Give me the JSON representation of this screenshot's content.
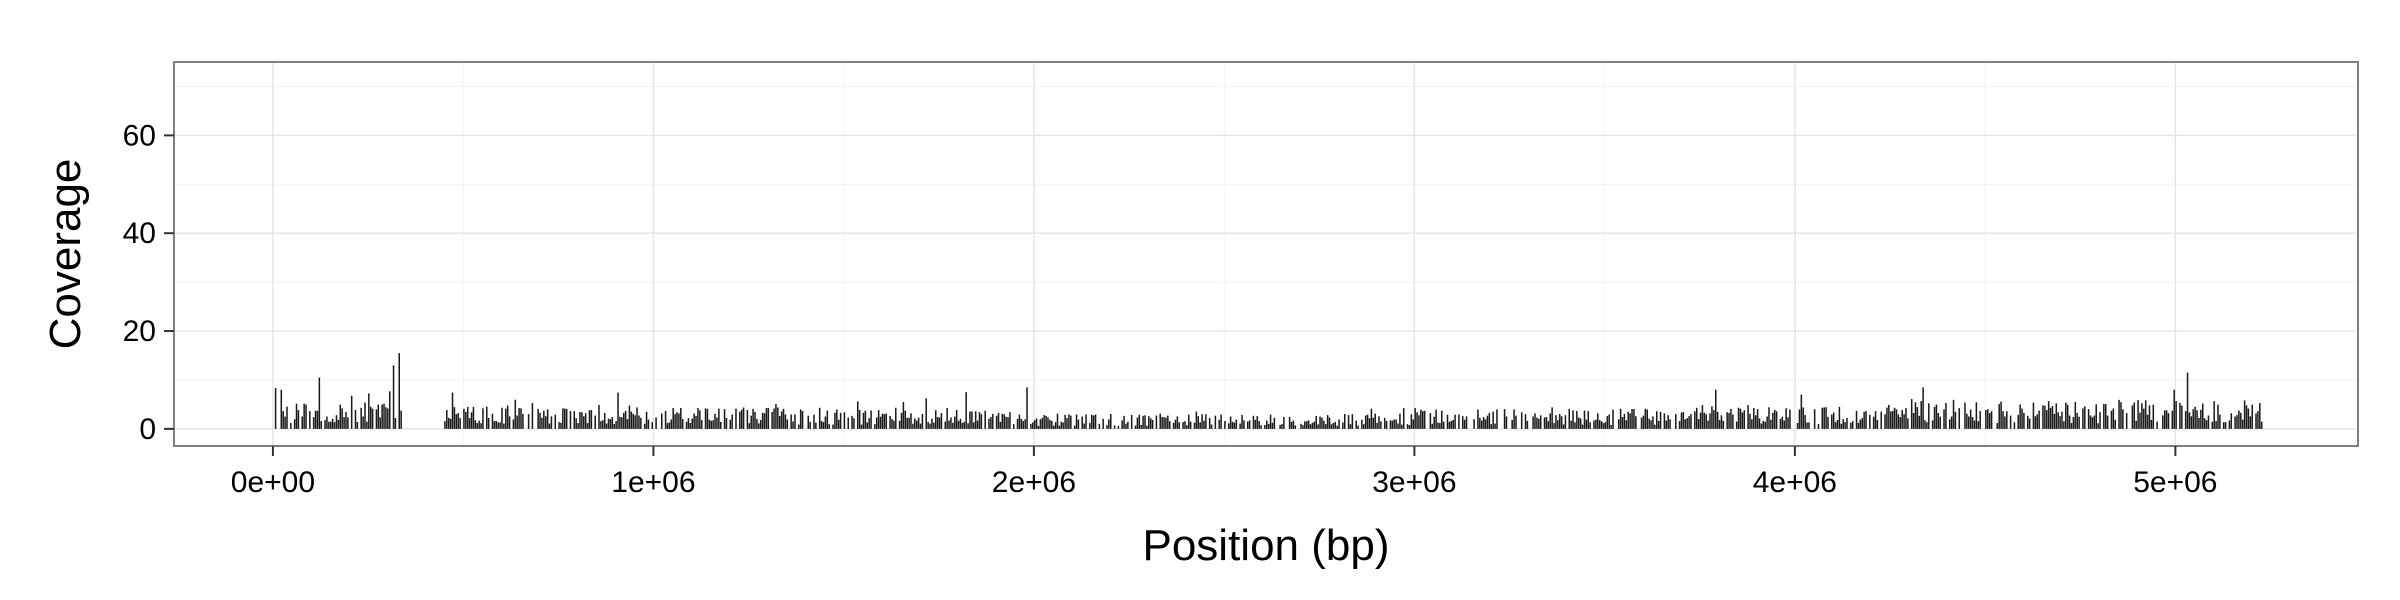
{
  "chart_data": {
    "type": "bar",
    "xlabel": "Position (bp)",
    "ylabel": "Coverage",
    "xlim": [
      -260000,
      5480000
    ],
    "ylim": [
      -3.5,
      75
    ],
    "x_ticks": [
      {
        "value": 0,
        "label": "0e+00"
      },
      {
        "value": 1000000,
        "label": "1e+06"
      },
      {
        "value": 2000000,
        "label": "2e+06"
      },
      {
        "value": 3000000,
        "label": "3e+06"
      },
      {
        "value": 4000000,
        "label": "4e+06"
      },
      {
        "value": 5000000,
        "label": "5e+06"
      }
    ],
    "y_ticks": [
      {
        "value": 0,
        "label": "0"
      },
      {
        "value": 20,
        "label": "20"
      },
      {
        "value": 40,
        "label": "40"
      },
      {
        "value": 60,
        "label": "60"
      }
    ],
    "bin_width": 5000,
    "x_start": 0,
    "x_end": 5240000,
    "gaps": [
      [
        340000,
        440000
      ]
    ],
    "peaks": [
      {
        "x": 330000,
        "y": 15.5
      },
      {
        "x": 315000,
        "y": 13
      },
      {
        "x": 5030000,
        "y": 11.5
      },
      {
        "x": 120000,
        "y": 10.5
      },
      {
        "x": 1980000,
        "y": 8.5
      },
      {
        "x": 4335000,
        "y": 8.5
      },
      {
        "x": 4995000,
        "y": 8
      },
      {
        "x": 3790000,
        "y": 8
      },
      {
        "x": 20000,
        "y": 8
      },
      {
        "x": 1820000,
        "y": 7.5
      }
    ],
    "colors": {
      "bar": "#1a1a1a",
      "panel_border": "#7f7f7f",
      "grid_major": "#e5e5e5",
      "grid_minor": "#f2f2f2",
      "axis_ticks": "#333333",
      "text": "#000000"
    },
    "grid": true,
    "legend": "none"
  }
}
